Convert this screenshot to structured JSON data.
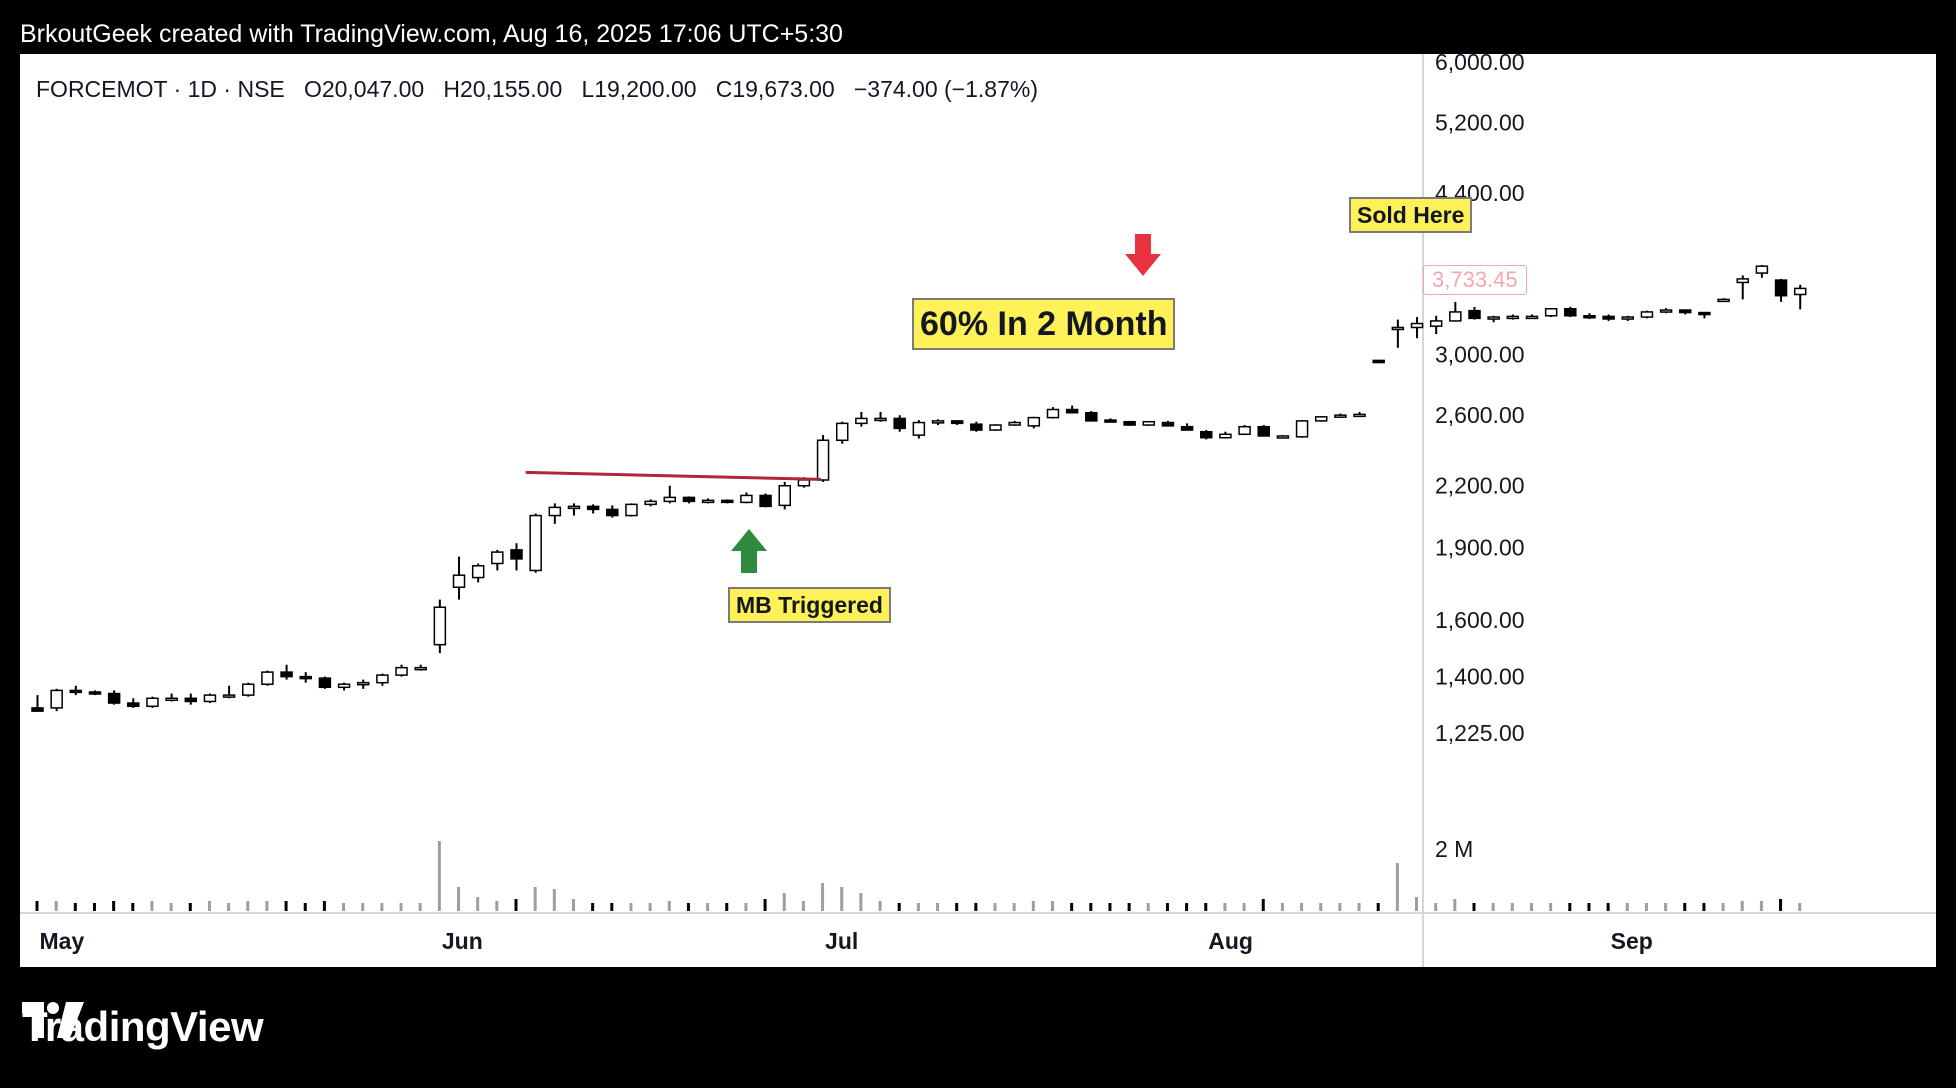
{
  "header": {
    "credit": "BrkoutGeek created with TradingView.com, Aug 16, 2025 17:06 UTC+5:30"
  },
  "legend": {
    "symbol": "FORCEMOT · 1D · NSE",
    "open": "O20,047.00",
    "high": "H20,155.00",
    "low": "L19,200.00",
    "close": "C19,673.00",
    "change": "−374.00 (−1.87%)"
  },
  "annotations": {
    "headline": "60% In 2 Month",
    "mb_triggered": "MB Triggered",
    "sold_here": "Sold Here",
    "last_price": "3,733.45"
  },
  "footer": {
    "brand": "TradingView"
  },
  "colors": {
    "background": "#000000",
    "panel": "#ffffff",
    "note_fill": "#fff157",
    "resistance_line": "#b2243a",
    "up_arrow": "#2e8b3e",
    "down_arrow": "#e8323f",
    "last_price_text": "#f4a7ae"
  },
  "chart_data": {
    "type": "candlestick",
    "scale": "log",
    "y_ticks": [
      "6,000.00",
      "5,200.00",
      "4,400.00",
      "3,000.00",
      "2,600.00",
      "2,200.00",
      "1,900.00",
      "1,600.00",
      "1,400.00",
      "1,225.00"
    ],
    "y_tick_values": [
      6000,
      5200,
      4400,
      3000,
      2600,
      2200,
      1900,
      1600,
      1400,
      1225
    ],
    "x_labels": [
      "May",
      "Jun",
      "Jul",
      "Aug",
      "Sep"
    ],
    "x_label_positions": [
      0,
      21,
      41,
      61,
      82
    ],
    "volume_label": "2 M",
    "resistance": {
      "from_index": 26,
      "to_index": 41,
      "value": 2260
    },
    "candles": [
      [
        1300,
        1340,
        1290,
        1290,
        0.05
      ],
      [
        1300,
        1360,
        1290,
        1355,
        0.05
      ],
      [
        1355,
        1370,
        1340,
        1352,
        0.04
      ],
      [
        1350,
        1355,
        1340,
        1345,
        0.04
      ],
      [
        1345,
        1355,
        1310,
        1315,
        0.05
      ],
      [
        1315,
        1330,
        1300,
        1305,
        0.04
      ],
      [
        1305,
        1335,
        1300,
        1330,
        0.05
      ],
      [
        1330,
        1345,
        1320,
        1330,
        0.04
      ],
      [
        1330,
        1345,
        1310,
        1320,
        0.04
      ],
      [
        1320,
        1345,
        1315,
        1340,
        0.05
      ],
      [
        1340,
        1370,
        1330,
        1340,
        0.04
      ],
      [
        1340,
        1380,
        1335,
        1375,
        0.05
      ],
      [
        1375,
        1420,
        1370,
        1415,
        0.05
      ],
      [
        1415,
        1440,
        1390,
        1400,
        0.05
      ],
      [
        1400,
        1415,
        1380,
        1395,
        0.04
      ],
      [
        1395,
        1400,
        1360,
        1365,
        0.05
      ],
      [
        1365,
        1380,
        1355,
        1375,
        0.04
      ],
      [
        1375,
        1390,
        1360,
        1380,
        0.04
      ],
      [
        1380,
        1410,
        1370,
        1405,
        0.04
      ],
      [
        1405,
        1440,
        1400,
        1430,
        0.04
      ],
      [
        1430,
        1440,
        1420,
        1430,
        0.04
      ],
      [
        1510,
        1680,
        1480,
        1650,
        0.35
      ],
      [
        1730,
        1860,
        1680,
        1780,
        0.12
      ],
      [
        1770,
        1830,
        1750,
        1820,
        0.07
      ],
      [
        1830,
        1890,
        1800,
        1880,
        0.05
      ],
      [
        1890,
        1920,
        1800,
        1850,
        0.06
      ],
      [
        1800,
        2060,
        1790,
        2050,
        0.12
      ],
      [
        2050,
        2110,
        2010,
        2090,
        0.11
      ],
      [
        2090,
        2110,
        2050,
        2095,
        0.06
      ],
      [
        2095,
        2105,
        2060,
        2080,
        0.04
      ],
      [
        2080,
        2100,
        2040,
        2050,
        0.04
      ],
      [
        2050,
        2110,
        2045,
        2105,
        0.04
      ],
      [
        2105,
        2130,
        2095,
        2120,
        0.04
      ],
      [
        2120,
        2200,
        2110,
        2140,
        0.05
      ],
      [
        2140,
        2145,
        2110,
        2120,
        0.04
      ],
      [
        2120,
        2135,
        2110,
        2125,
        0.04
      ],
      [
        2125,
        2130,
        2110,
        2120,
        0.04
      ],
      [
        2115,
        2165,
        2110,
        2150,
        0.04
      ],
      [
        2150,
        2160,
        2090,
        2095,
        0.06
      ],
      [
        2100,
        2220,
        2080,
        2200,
        0.09
      ],
      [
        2200,
        2245,
        2190,
        2230,
        0.05
      ],
      [
        2230,
        2480,
        2220,
        2450,
        0.14
      ],
      [
        2450,
        2560,
        2430,
        2550,
        0.12
      ],
      [
        2550,
        2620,
        2530,
        2580,
        0.09
      ],
      [
        2580,
        2620,
        2560,
        2580,
        0.05
      ],
      [
        2580,
        2600,
        2500,
        2520,
        0.04
      ],
      [
        2480,
        2570,
        2460,
        2555,
        0.04
      ],
      [
        2555,
        2575,
        2540,
        2565,
        0.04
      ],
      [
        2565,
        2570,
        2540,
        2550,
        0.04
      ],
      [
        2545,
        2560,
        2500,
        2510,
        0.04
      ],
      [
        2510,
        2545,
        2505,
        2540,
        0.04
      ],
      [
        2540,
        2565,
        2535,
        2555,
        0.04
      ],
      [
        2535,
        2590,
        2520,
        2585,
        0.05
      ],
      [
        2585,
        2650,
        2580,
        2635,
        0.05
      ],
      [
        2635,
        2660,
        2610,
        2615,
        0.04
      ],
      [
        2615,
        2625,
        2565,
        2565,
        0.04
      ],
      [
        2570,
        2580,
        2560,
        2565,
        0.04
      ],
      [
        2560,
        2565,
        2535,
        2540,
        0.04
      ],
      [
        2540,
        2565,
        2535,
        2560,
        0.04
      ],
      [
        2555,
        2565,
        2530,
        2535,
        0.04
      ],
      [
        2530,
        2550,
        2510,
        2510,
        0.04
      ],
      [
        2500,
        2510,
        2455,
        2465,
        0.04
      ],
      [
        2465,
        2500,
        2460,
        2485,
        0.04
      ],
      [
        2485,
        2540,
        2480,
        2530,
        0.04
      ],
      [
        2530,
        2540,
        2480,
        2475,
        0.06
      ],
      [
        2470,
        2480,
        2460,
        2475,
        0.04
      ],
      [
        2470,
        2570,
        2465,
        2565,
        0.04
      ],
      [
        2565,
        2595,
        2560,
        2590,
        0.04
      ],
      [
        2590,
        2610,
        2585,
        2600,
        0.04
      ],
      [
        2600,
        2620,
        2590,
        2605,
        0.04
      ],
      [
        2960,
        2960,
        2940,
        2945,
        0.04
      ],
      [
        3200,
        3260,
        3050,
        3200,
        0.24
      ],
      [
        3200,
        3280,
        3120,
        3230,
        0.07
      ],
      [
        3210,
        3290,
        3150,
        3250,
        0.04
      ],
      [
        3250,
        3400,
        3245,
        3320,
        0.06
      ],
      [
        3330,
        3360,
        3260,
        3270,
        0.04
      ],
      [
        3270,
        3290,
        3240,
        3280,
        0.04
      ],
      [
        3280,
        3300,
        3260,
        3285,
        0.04
      ],
      [
        3285,
        3300,
        3270,
        3285,
        0.04
      ],
      [
        3290,
        3350,
        3280,
        3345,
        0.04
      ],
      [
        3345,
        3360,
        3280,
        3290,
        0.04
      ],
      [
        3290,
        3310,
        3265,
        3285,
        0.04
      ],
      [
        3285,
        3300,
        3250,
        3265,
        0.04
      ],
      [
        3265,
        3290,
        3250,
        3280,
        0.04
      ],
      [
        3280,
        3330,
        3270,
        3320,
        0.04
      ],
      [
        3320,
        3350,
        3310,
        3335,
        0.04
      ],
      [
        3335,
        3340,
        3300,
        3315,
        0.04
      ],
      [
        3315,
        3320,
        3270,
        3300,
        0.04
      ],
      [
        3420,
        3430,
        3400,
        3420,
        0.04
      ],
      [
        3560,
        3620,
        3420,
        3590,
        0.05
      ],
      [
        3640,
        3710,
        3600,
        3700,
        0.05
      ],
      [
        3580,
        3590,
        3400,
        3450,
        0.06
      ],
      [
        3460,
        3540,
        3340,
        3510,
        0.04
      ]
    ]
  }
}
